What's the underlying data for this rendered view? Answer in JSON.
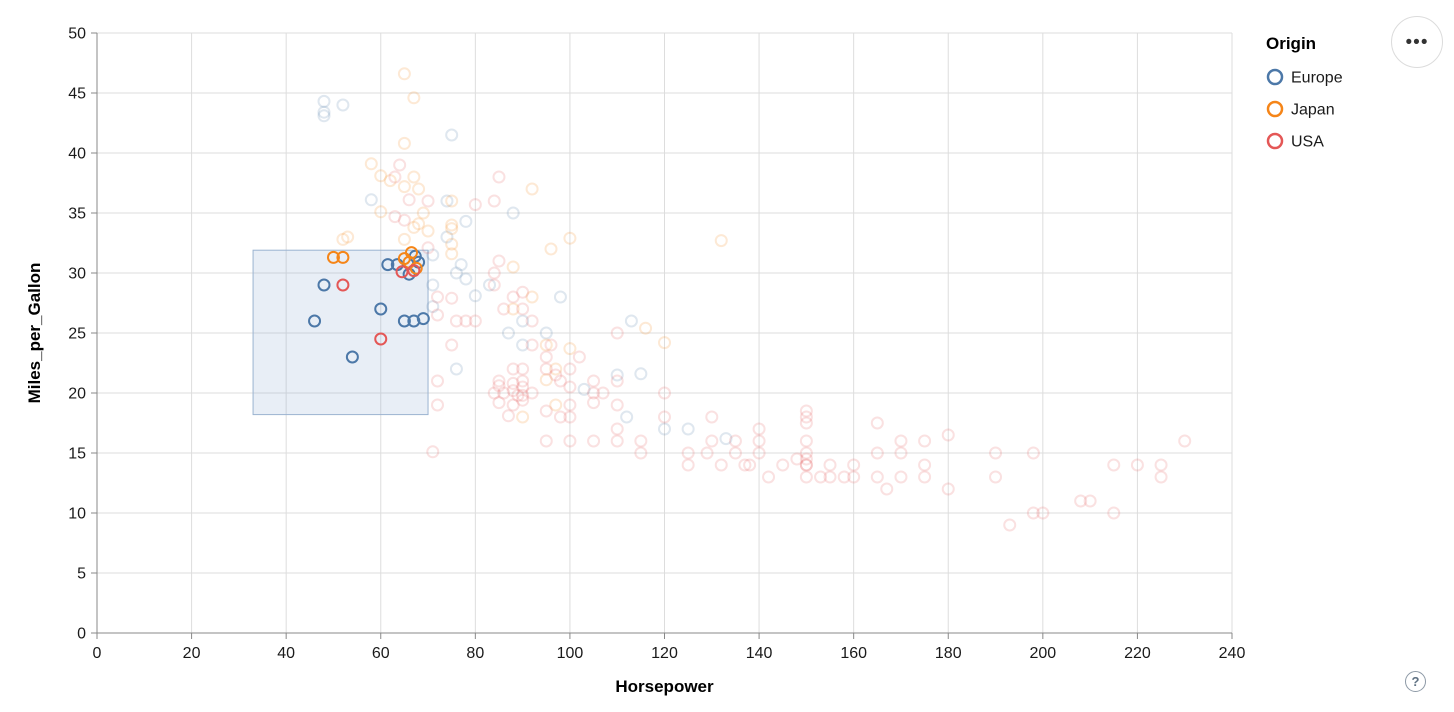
{
  "widgets": {
    "menu_icon": "•••",
    "help_label": "?"
  },
  "chart_data": {
    "type": "scatter",
    "title": "",
    "xlabel": "Horsepower",
    "ylabel": "Miles_per_Gallon",
    "xlim": [
      0,
      240
    ],
    "ylim": [
      0,
      50
    ],
    "x_ticks": [
      0,
      20,
      40,
      60,
      80,
      100,
      120,
      140,
      160,
      180,
      200,
      220,
      240
    ],
    "y_ticks": [
      0,
      5,
      10,
      15,
      20,
      25,
      30,
      35,
      40,
      45,
      50
    ],
    "grid": true,
    "legend": {
      "title": "Origin",
      "position": "top-right",
      "entries": [
        {
          "label": "Europe",
          "color": "#4c78a8"
        },
        {
          "label": "Japan",
          "color": "#f58518"
        },
        {
          "label": "USA",
          "color": "#e45756"
        }
      ]
    },
    "brush": {
      "x": [
        33,
        70
      ],
      "y": [
        18.2,
        31.9
      ],
      "fill": "#7fa3cc",
      "fill_opacity": 0.18,
      "stroke": "#9bb3d1"
    },
    "point_style": {
      "shape": "open-circle",
      "radius": 5.5,
      "stroke_width": 2,
      "selected_opacity": 1,
      "unselected_opacity": 0.18
    },
    "axis_colors": {
      "grid": "#dddddd",
      "domain": "#888888",
      "tick": "#888888",
      "label": "#1a1a1a"
    },
    "series": [
      {
        "name": "Europe",
        "color": "#4c78a8",
        "selected": [
          [
            46,
            26
          ],
          [
            48,
            29
          ],
          [
            54,
            23
          ],
          [
            60,
            27
          ],
          [
            61.5,
            30.7
          ],
          [
            63.5,
            30.7
          ],
          [
            66,
            29.9
          ],
          [
            67.3,
            31.4
          ],
          [
            68,
            30.9
          ],
          [
            65,
            26
          ],
          [
            67,
            26
          ],
          [
            69,
            26.2
          ]
        ],
        "unselected": [
          [
            48,
            43.1
          ],
          [
            48,
            44.3
          ],
          [
            48,
            43.4
          ],
          [
            52,
            44
          ],
          [
            58,
            36.1
          ],
          [
            71,
            31.5
          ],
          [
            71,
            29
          ],
          [
            71,
            27.2
          ],
          [
            74,
            36
          ],
          [
            74,
            33
          ],
          [
            75,
            41.5
          ],
          [
            76,
            30
          ],
          [
            76,
            22
          ],
          [
            77,
            30.7
          ],
          [
            78,
            34.3
          ],
          [
            78,
            29.5
          ],
          [
            80,
            28.1
          ],
          [
            83,
            29
          ],
          [
            87,
            25
          ],
          [
            88,
            35
          ],
          [
            90,
            24
          ],
          [
            90,
            26
          ],
          [
            95,
            25
          ],
          [
            98,
            28
          ],
          [
            103,
            20.3
          ],
          [
            110,
            21.5
          ],
          [
            112,
            18
          ],
          [
            113,
            26
          ],
          [
            115,
            21.6
          ],
          [
            120,
            17
          ],
          [
            125,
            17
          ],
          [
            133,
            16.2
          ]
        ]
      },
      {
        "name": "Japan",
        "color": "#f58518",
        "selected": [
          [
            50,
            31.3
          ],
          [
            52,
            31.3
          ],
          [
            65,
            31.2
          ],
          [
            66,
            30.9
          ],
          [
            66.5,
            31.7
          ],
          [
            67.5,
            30.4
          ]
        ],
        "unselected": [
          [
            52,
            32.8
          ],
          [
            53,
            33
          ],
          [
            58,
            39.1
          ],
          [
            60,
            35.1
          ],
          [
            60,
            38.1
          ],
          [
            62,
            37.7
          ],
          [
            65,
            32.8
          ],
          [
            65,
            37.2
          ],
          [
            65,
            40.8
          ],
          [
            65,
            46.6
          ],
          [
            67,
            33.8
          ],
          [
            67,
            38
          ],
          [
            67,
            44.6
          ],
          [
            68,
            34.1
          ],
          [
            68,
            37
          ],
          [
            69,
            35
          ],
          [
            70,
            33.5
          ],
          [
            75,
            31.6
          ],
          [
            75,
            32.4
          ],
          [
            75,
            33.7
          ],
          [
            75,
            34
          ],
          [
            75,
            36
          ],
          [
            88,
            27
          ],
          [
            88,
            30.5
          ],
          [
            90,
            18
          ],
          [
            92,
            28
          ],
          [
            92,
            37
          ],
          [
            95,
            24
          ],
          [
            95,
            21.1
          ],
          [
            96,
            32
          ],
          [
            97,
            19
          ],
          [
            97,
            22
          ],
          [
            100,
            23.7
          ],
          [
            100,
            32.9
          ],
          [
            116,
            25.4
          ],
          [
            120,
            24.2
          ],
          [
            132,
            32.7
          ]
        ]
      },
      {
        "name": "USA",
        "color": "#e45756",
        "selected": [
          [
            52,
            29
          ],
          [
            60,
            24.5
          ],
          [
            64.5,
            30.1
          ],
          [
            67,
            30.2
          ]
        ],
        "unselected": [
          [
            63,
            34.7
          ],
          [
            63,
            38
          ],
          [
            64,
            39
          ],
          [
            65,
            34.4
          ],
          [
            66,
            36.1
          ],
          [
            70,
            32.1
          ],
          [
            70,
            36
          ],
          [
            71,
            15.1
          ],
          [
            72,
            19
          ],
          [
            72,
            21
          ],
          [
            72,
            26.5
          ],
          [
            72,
            28
          ],
          [
            75,
            24
          ],
          [
            75,
            27.9
          ],
          [
            76,
            26
          ],
          [
            78,
            26
          ],
          [
            80,
            26
          ],
          [
            80,
            35.7
          ],
          [
            84,
            20
          ],
          [
            84,
            29
          ],
          [
            84,
            30
          ],
          [
            84,
            36
          ],
          [
            85,
            19.2
          ],
          [
            85,
            20.6
          ],
          [
            85,
            21
          ],
          [
            85,
            31
          ],
          [
            85,
            38
          ],
          [
            86,
            20
          ],
          [
            86,
            27
          ],
          [
            87,
            18.1
          ],
          [
            88,
            19
          ],
          [
            88,
            20.2
          ],
          [
            88,
            20.8
          ],
          [
            88,
            22
          ],
          [
            88,
            28
          ],
          [
            89,
            19.8
          ],
          [
            90,
            19.4
          ],
          [
            90,
            19.8
          ],
          [
            90,
            20.5
          ],
          [
            90,
            21
          ],
          [
            90,
            22
          ],
          [
            90,
            27
          ],
          [
            90,
            28.4
          ],
          [
            92,
            20
          ],
          [
            92,
            24
          ],
          [
            92,
            26
          ],
          [
            95,
            16
          ],
          [
            95,
            18.5
          ],
          [
            95,
            22
          ],
          [
            95,
            23
          ],
          [
            96,
            24
          ],
          [
            97,
            21.5
          ],
          [
            98,
            18
          ],
          [
            98,
            21
          ],
          [
            100,
            16
          ],
          [
            100,
            18
          ],
          [
            100,
            19
          ],
          [
            100,
            20.5
          ],
          [
            100,
            22
          ],
          [
            102,
            23
          ],
          [
            105,
            16
          ],
          [
            105,
            19.2
          ],
          [
            105,
            20
          ],
          [
            105,
            21
          ],
          [
            107,
            20
          ],
          [
            110,
            16
          ],
          [
            110,
            17
          ],
          [
            110,
            19
          ],
          [
            110,
            21
          ],
          [
            110,
            25
          ],
          [
            115,
            15
          ],
          [
            115,
            16
          ],
          [
            120,
            18
          ],
          [
            120,
            20
          ],
          [
            125,
            14
          ],
          [
            125,
            15
          ],
          [
            129,
            15
          ],
          [
            130,
            16
          ],
          [
            130,
            18
          ],
          [
            132,
            14
          ],
          [
            135,
            15
          ],
          [
            135,
            16
          ],
          [
            137,
            14
          ],
          [
            138,
            14
          ],
          [
            140,
            15
          ],
          [
            140,
            16
          ],
          [
            140,
            17
          ],
          [
            142,
            13
          ],
          [
            145,
            14
          ],
          [
            148,
            14.5
          ],
          [
            150,
            13
          ],
          [
            150,
            14
          ],
          [
            150,
            14
          ],
          [
            150,
            14.5
          ],
          [
            150,
            15
          ],
          [
            150,
            16
          ],
          [
            150,
            17.5
          ],
          [
            150,
            18
          ],
          [
            150,
            18.5
          ],
          [
            153,
            13
          ],
          [
            155,
            13
          ],
          [
            155,
            14
          ],
          [
            158,
            13
          ],
          [
            160,
            13
          ],
          [
            160,
            14
          ],
          [
            165,
            13
          ],
          [
            165,
            15
          ],
          [
            165,
            17.5
          ],
          [
            167,
            12
          ],
          [
            170,
            13
          ],
          [
            170,
            15
          ],
          [
            170,
            16
          ],
          [
            175,
            13
          ],
          [
            175,
            14
          ],
          [
            175,
            16
          ],
          [
            180,
            12
          ],
          [
            180,
            16.5
          ],
          [
            190,
            13
          ],
          [
            190,
            15
          ],
          [
            193,
            9
          ],
          [
            198,
            10
          ],
          [
            198,
            15
          ],
          [
            200,
            10
          ],
          [
            208,
            11
          ],
          [
            210,
            11
          ],
          [
            215,
            10
          ],
          [
            215,
            14
          ],
          [
            220,
            14
          ],
          [
            225,
            13
          ],
          [
            225,
            14
          ],
          [
            230,
            16
          ]
        ]
      }
    ]
  }
}
